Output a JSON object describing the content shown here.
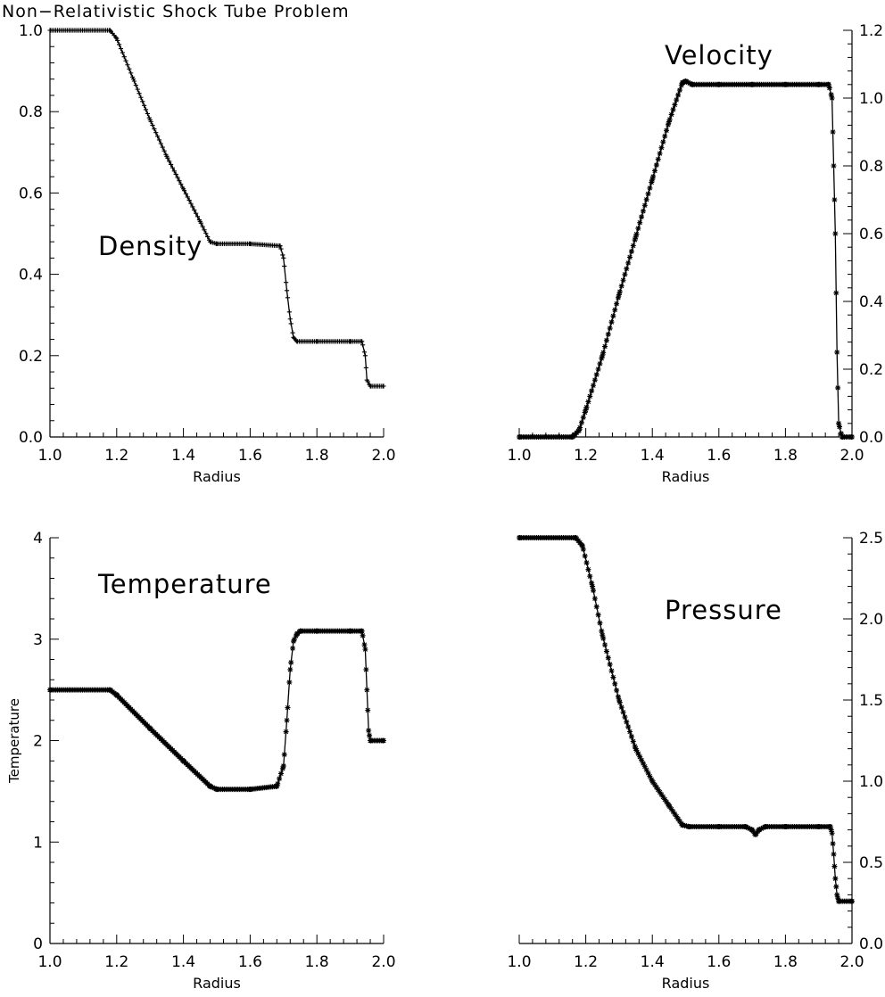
{
  "figure": {
    "title": "Non−Relativistic Shock Tube Problem"
  },
  "chart_data": [
    {
      "type": "line",
      "name": "density-panel",
      "annotation": "Density",
      "xlabel": "Radius",
      "ylabel": "",
      "xlim": [
        1.0,
        2.0
      ],
      "ylim": [
        0.0,
        1.0
      ],
      "xticks": [
        "1.0",
        "1.2",
        "1.4",
        "1.6",
        "1.8",
        "2.0"
      ],
      "yticks": [
        "0.0",
        "0.2",
        "0.4",
        "0.6",
        "0.8",
        "1.0"
      ],
      "yaxis_side": "left",
      "marker": "plus",
      "grid": false,
      "x": [
        1.0,
        1.18,
        1.2,
        1.25,
        1.3,
        1.35,
        1.4,
        1.45,
        1.48,
        1.5,
        1.6,
        1.69,
        1.7,
        1.71,
        1.72,
        1.73,
        1.74,
        1.8,
        1.9,
        1.935,
        1.945,
        1.95,
        1.96,
        2.0
      ],
      "y": [
        1.0,
        1.0,
        0.98,
        0.88,
        0.78,
        0.69,
        0.61,
        0.53,
        0.48,
        0.475,
        0.475,
        0.47,
        0.44,
        0.36,
        0.29,
        0.245,
        0.235,
        0.235,
        0.235,
        0.235,
        0.2,
        0.14,
        0.125,
        0.125
      ]
    },
    {
      "type": "line",
      "name": "velocity-panel",
      "annotation": "Velocity",
      "xlabel": "Radius",
      "ylabel": "",
      "xlim": [
        1.0,
        2.0
      ],
      "ylim": [
        0.0,
        1.2
      ],
      "xticks": [
        "1.0",
        "1.2",
        "1.4",
        "1.6",
        "1.8",
        "2.0"
      ],
      "yticks": [
        "0.0",
        "0.2",
        "0.4",
        "0.6",
        "0.8",
        "1.0",
        "1.2"
      ],
      "yaxis_side": "right",
      "marker": "star",
      "grid": false,
      "x": [
        1.0,
        1.16,
        1.18,
        1.2,
        1.25,
        1.3,
        1.35,
        1.4,
        1.45,
        1.49,
        1.5,
        1.52,
        1.6,
        1.7,
        1.8,
        1.9,
        1.93,
        1.94,
        1.945,
        1.95,
        1.955,
        1.96,
        1.97,
        2.0
      ],
      "y": [
        0.0,
        0.0,
        0.02,
        0.08,
        0.24,
        0.42,
        0.59,
        0.76,
        0.93,
        1.045,
        1.05,
        1.04,
        1.04,
        1.04,
        1.04,
        1.04,
        1.04,
        1.0,
        0.8,
        0.6,
        0.25,
        0.04,
        0.0,
        0.0
      ]
    },
    {
      "type": "line",
      "name": "temperature-panel",
      "annotation": "Temperature",
      "xlabel": "Radius",
      "ylabel": "Temperature",
      "xlim": [
        1.0,
        2.0
      ],
      "ylim": [
        0.0,
        4.0
      ],
      "xticks": [
        "1.0",
        "1.2",
        "1.4",
        "1.6",
        "1.8",
        "2.0"
      ],
      "yticks": [
        "0",
        "1",
        "2",
        "3",
        "4"
      ],
      "yaxis_side": "left",
      "marker": "star",
      "grid": false,
      "x": [
        1.0,
        1.18,
        1.2,
        1.3,
        1.4,
        1.48,
        1.5,
        1.6,
        1.68,
        1.7,
        1.71,
        1.72,
        1.73,
        1.74,
        1.75,
        1.8,
        1.9,
        1.935,
        1.945,
        1.95,
        1.955,
        1.96,
        2.0
      ],
      "y": [
        2.5,
        2.5,
        2.45,
        2.12,
        1.8,
        1.55,
        1.52,
        1.52,
        1.55,
        1.75,
        2.2,
        2.7,
        2.98,
        3.05,
        3.08,
        3.08,
        3.08,
        3.08,
        2.9,
        2.5,
        2.1,
        2.0,
        2.0
      ]
    },
    {
      "type": "line",
      "name": "pressure-panel",
      "annotation": "Pressure",
      "xlabel": "Radius",
      "ylabel": "",
      "xlim": [
        1.0,
        2.0
      ],
      "ylim": [
        0.0,
        2.5
      ],
      "xticks": [
        "1.0",
        "1.2",
        "1.4",
        "1.6",
        "1.8",
        "2.0"
      ],
      "yticks": [
        "0.0",
        "0.5",
        "1.0",
        "1.5",
        "2.0",
        "2.5"
      ],
      "yaxis_side": "right",
      "marker": "star",
      "grid": false,
      "x": [
        1.0,
        1.17,
        1.19,
        1.22,
        1.25,
        1.3,
        1.35,
        1.4,
        1.45,
        1.49,
        1.51,
        1.6,
        1.68,
        1.7,
        1.71,
        1.72,
        1.74,
        1.8,
        1.9,
        1.935,
        1.94,
        1.945,
        1.95,
        1.955,
        1.96,
        2.0
      ],
      "y": [
        2.5,
        2.5,
        2.45,
        2.2,
        1.9,
        1.5,
        1.2,
        1.0,
        0.85,
        0.73,
        0.72,
        0.72,
        0.72,
        0.7,
        0.67,
        0.7,
        0.72,
        0.72,
        0.72,
        0.72,
        0.68,
        0.55,
        0.4,
        0.3,
        0.26,
        0.26
      ]
    }
  ]
}
